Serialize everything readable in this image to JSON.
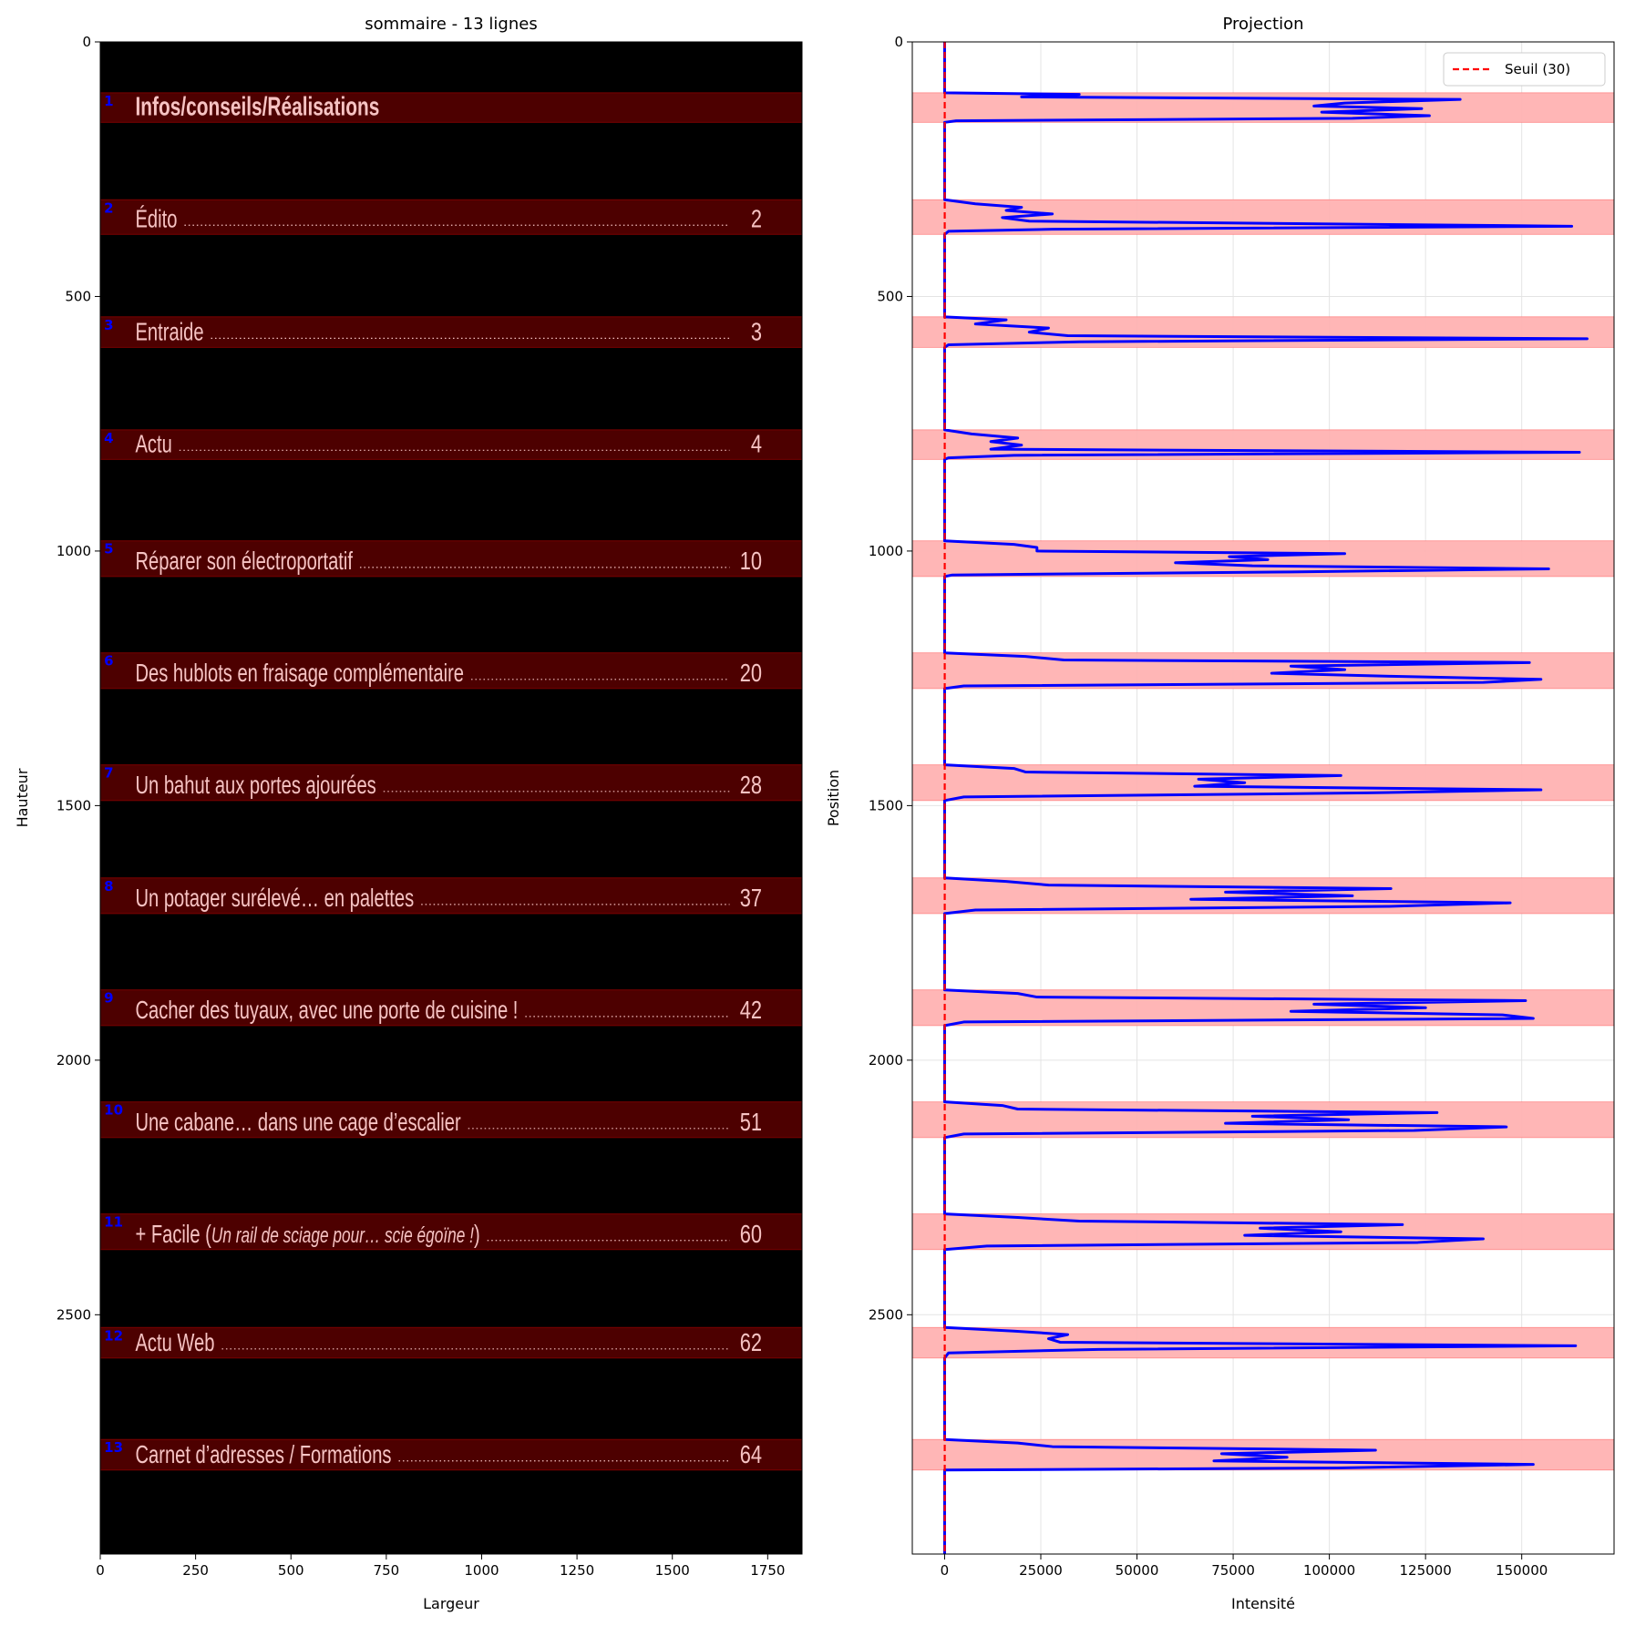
{
  "chart_data": [
    {
      "type": "image",
      "title": "sommaire - 13 lignes",
      "xlabel": "Largeur",
      "ylabel": "Hauteur",
      "xlim": [
        0,
        1840
      ],
      "ylim": [
        2970,
        0
      ],
      "xticks": [
        0,
        250,
        500,
        750,
        1000,
        1250,
        1500,
        1750
      ],
      "yticks": [
        0,
        500,
        1000,
        1500,
        2000,
        2500
      ],
      "colors": {
        "background": "#000000",
        "band_fill": "#4d0000",
        "band_edge": "#7a0000",
        "text": "#f6c3c3",
        "number": "#0000ff"
      },
      "lines": [
        {
          "n": "1",
          "text": "Infos/conseils/Réalisations",
          "page": "",
          "y0": 100,
          "y1": 158,
          "bold": true,
          "italic_part": ""
        },
        {
          "n": "2",
          "text": "Édito",
          "page": "2",
          "y0": 310,
          "y1": 378
        },
        {
          "n": "3",
          "text": "Entraide",
          "page": "3",
          "y0": 540,
          "y1": 600
        },
        {
          "n": "4",
          "text": "Actu",
          "page": "4",
          "y0": 762,
          "y1": 820
        },
        {
          "n": "5",
          "text": "Réparer son électroportatif",
          "page": "10",
          "y0": 980,
          "y1": 1050
        },
        {
          "n": "6",
          "text": "Des hublots en fraisage complémentaire",
          "page": "20",
          "y0": 1200,
          "y1": 1270
        },
        {
          "n": "7",
          "text": "Un bahut aux portes ajourées",
          "page": "28",
          "y0": 1420,
          "y1": 1490
        },
        {
          "n": "8",
          "text": "Un potager surélevé… en palettes",
          "page": "37",
          "y0": 1642,
          "y1": 1712
        },
        {
          "n": "9",
          "text": "Cacher des tuyaux, avec une porte de cuisine !",
          "page": "42",
          "y0": 1862,
          "y1": 1932
        },
        {
          "n": "10",
          "text": "Une cabane… dans une cage d’escalier",
          "page": "51",
          "y0": 2082,
          "y1": 2152
        },
        {
          "n": "11",
          "text": "+ Facile (",
          "italic_part": "Un rail de sciage pour… scie égoïne !",
          "text_end": ")",
          "page": "60",
          "y0": 2302,
          "y1": 2372
        },
        {
          "n": "12",
          "text": "Actu Web",
          "page": "62",
          "y0": 2525,
          "y1": 2585
        },
        {
          "n": "13",
          "text": "Carnet d’adresses / Formations",
          "page": "64",
          "y0": 2745,
          "y1": 2805
        }
      ]
    },
    {
      "type": "line",
      "title": "Projection",
      "xlabel": "Intensité",
      "ylabel": "Position",
      "xlim": [
        -8400,
        174000
      ],
      "ylim": [
        2970,
        0
      ],
      "xticks": [
        0,
        25000,
        50000,
        75000,
        100000,
        125000,
        150000
      ],
      "yticks": [
        0,
        500,
        1000,
        1500,
        2000,
        2500
      ],
      "grid": true,
      "legend_position": "top-right",
      "threshold": {
        "label": "Seuil (30)",
        "value": 30,
        "color": "#ff0000"
      },
      "series_color": "#0000ff",
      "bands_color": "#ffb3b3",
      "bands": [
        [
          100,
          158
        ],
        [
          310,
          378
        ],
        [
          540,
          600
        ],
        [
          762,
          820
        ],
        [
          980,
          1050
        ],
        [
          1200,
          1270
        ],
        [
          1420,
          1490
        ],
        [
          1642,
          1712
        ],
        [
          1862,
          1932
        ],
        [
          2082,
          2152
        ],
        [
          2302,
          2372
        ],
        [
          2525,
          2585
        ],
        [
          2745,
          2805
        ]
      ],
      "peaks": [
        [
          [
            100,
            0
          ],
          [
            103,
            35000
          ],
          [
            108,
            20000
          ],
          [
            113,
            134000
          ],
          [
            120,
            104000
          ],
          [
            126,
            96000
          ],
          [
            131,
            124000
          ],
          [
            138,
            98000
          ],
          [
            145,
            126000
          ],
          [
            150,
            106000
          ],
          [
            155,
            3000
          ],
          [
            158,
            0
          ]
        ],
        [
          [
            310,
            0
          ],
          [
            318,
            8000
          ],
          [
            325,
            20000
          ],
          [
            331,
            16000
          ],
          [
            338,
            28000
          ],
          [
            345,
            15000
          ],
          [
            352,
            22000
          ],
          [
            362,
            163000
          ],
          [
            368,
            28000
          ],
          [
            372,
            1000
          ],
          [
            378,
            0
          ]
        ],
        [
          [
            540,
            0
          ],
          [
            546,
            16000
          ],
          [
            554,
            8000
          ],
          [
            562,
            27000
          ],
          [
            570,
            22000
          ],
          [
            577,
            32000
          ],
          [
            583,
            167000
          ],
          [
            589,
            35000
          ],
          [
            595,
            1000
          ],
          [
            600,
            0
          ]
        ],
        [
          [
            762,
            0
          ],
          [
            770,
            7000
          ],
          [
            778,
            19000
          ],
          [
            785,
            12000
          ],
          [
            792,
            20000
          ],
          [
            800,
            12000
          ],
          [
            806,
            165000
          ],
          [
            812,
            18000
          ],
          [
            817,
            1000
          ],
          [
            820,
            0
          ]
        ],
        [
          [
            980,
            0
          ],
          [
            987,
            18000
          ],
          [
            993,
            24000
          ],
          [
            1000,
            24000
          ],
          [
            1005,
            104000
          ],
          [
            1011,
            74000
          ],
          [
            1017,
            84000
          ],
          [
            1023,
            60000
          ],
          [
            1029,
            80000
          ],
          [
            1035,
            157000
          ],
          [
            1041,
            90000
          ],
          [
            1047,
            2000
          ],
          [
            1050,
            0
          ]
        ],
        [
          [
            1200,
            0
          ],
          [
            1207,
            21000
          ],
          [
            1214,
            31000
          ],
          [
            1219,
            152000
          ],
          [
            1226,
            90000
          ],
          [
            1233,
            104000
          ],
          [
            1240,
            85000
          ],
          [
            1246,
            116000
          ],
          [
            1252,
            155000
          ],
          [
            1258,
            140000
          ],
          [
            1265,
            5000
          ],
          [
            1270,
            0
          ]
        ],
        [
          [
            1420,
            0
          ],
          [
            1427,
            18000
          ],
          [
            1434,
            21000
          ],
          [
            1441,
            103000
          ],
          [
            1448,
            66000
          ],
          [
            1455,
            78000
          ],
          [
            1462,
            65000
          ],
          [
            1469,
            155000
          ],
          [
            1475,
            110000
          ],
          [
            1483,
            5000
          ],
          [
            1490,
            0
          ]
        ],
        [
          [
            1642,
            0
          ],
          [
            1649,
            16000
          ],
          [
            1656,
            27000
          ],
          [
            1663,
            116000
          ],
          [
            1670,
            73000
          ],
          [
            1677,
            106000
          ],
          [
            1684,
            64000
          ],
          [
            1691,
            147000
          ],
          [
            1698,
            115000
          ],
          [
            1705,
            8000
          ],
          [
            1712,
            0
          ]
        ],
        [
          [
            1862,
            0
          ],
          [
            1869,
            19000
          ],
          [
            1876,
            24000
          ],
          [
            1883,
            151000
          ],
          [
            1890,
            96000
          ],
          [
            1897,
            125000
          ],
          [
            1904,
            90000
          ],
          [
            1911,
            145000
          ],
          [
            1918,
            153000
          ],
          [
            1925,
            5000
          ],
          [
            1932,
            0
          ]
        ],
        [
          [
            2082,
            0
          ],
          [
            2089,
            15000
          ],
          [
            2096,
            19000
          ],
          [
            2103,
            128000
          ],
          [
            2110,
            80000
          ],
          [
            2117,
            105000
          ],
          [
            2124,
            73000
          ],
          [
            2131,
            146000
          ],
          [
            2138,
            122000
          ],
          [
            2145,
            5000
          ],
          [
            2152,
            0
          ]
        ],
        [
          [
            2302,
            0
          ],
          [
            2309,
            19000
          ],
          [
            2316,
            35000
          ],
          [
            2323,
            119000
          ],
          [
            2330,
            82000
          ],
          [
            2337,
            103000
          ],
          [
            2344,
            78000
          ],
          [
            2351,
            140000
          ],
          [
            2358,
            123000
          ],
          [
            2365,
            11000
          ],
          [
            2372,
            0
          ]
        ],
        [
          [
            2525,
            0
          ],
          [
            2532,
            18000
          ],
          [
            2539,
            32000
          ],
          [
            2547,
            27000
          ],
          [
            2554,
            30000
          ],
          [
            2561,
            164000
          ],
          [
            2568,
            40000
          ],
          [
            2575,
            1000
          ],
          [
            2585,
            0
          ]
        ],
        [
          [
            2745,
            0
          ],
          [
            2752,
            19000
          ],
          [
            2759,
            28000
          ],
          [
            2766,
            112000
          ],
          [
            2773,
            72000
          ],
          [
            2780,
            89000
          ],
          [
            2787,
            70000
          ],
          [
            2794,
            153000
          ],
          [
            2801,
            102000
          ],
          [
            2805,
            0
          ]
        ]
      ]
    }
  ]
}
